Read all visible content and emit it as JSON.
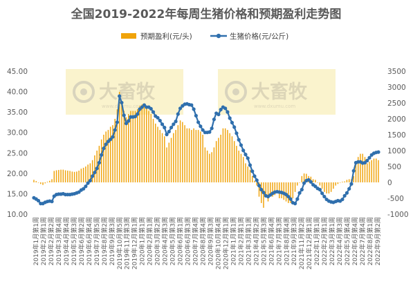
{
  "chart_data": {
    "type": "bar+line",
    "title": "全国2019-2022年每周生猪价格和预期盈利走势图",
    "xlabel": "",
    "ylabel_left": "",
    "ylabel_right": "",
    "y_left": {
      "min": 10,
      "max": 45,
      "step": 5,
      "tick_labels": [
        "10.00",
        "15.00",
        "20.00",
        "25.00",
        "30.00",
        "35.00",
        "40.00",
        "45.00"
      ]
    },
    "y_right": {
      "min": -1000,
      "max": 3500,
      "step": 500,
      "tick_labels": [
        "-1000",
        "-500",
        "0",
        "500",
        "1000",
        "1500",
        "2000",
        "2500",
        "3000",
        "3500"
      ]
    },
    "legend": {
      "position": "top",
      "items": [
        {
          "name": "预期盈利(元/头)",
          "color": "#f0a30a",
          "type": "bar"
        },
        {
          "name": "生猪价格(元/公斤)",
          "color": "#2f6fad",
          "type": "line"
        }
      ]
    },
    "watermark": {
      "logo_text": "大畜牧",
      "url": "www.dxumu.com",
      "count": 2
    },
    "x_tick_labels": [
      "2019年1月第1周",
      "2019年2月第1周",
      "2019年2月第2周",
      "2019年3月第4周",
      "2019年4月第4周",
      "2019年5月第3周",
      "2019年6月第2周",
      "2019年6月第4周",
      "2019年7月第5周",
      "2019年8月第2周",
      "2019年9月第3周",
      "2019年10月第5周",
      "2019年11月第3周",
      "2019年12月第1周",
      "2020年1月第1周",
      "2020年2月第1周",
      "2020年3月第2周",
      "2020年4月第3周",
      "2020年5月第3周",
      "2020年6月第1周",
      "2020年6月第3周",
      "2020年7月第4周",
      "2020年8月第4周",
      "2020年9月第3周",
      "2020年10月第4周",
      "2020年12月第1周",
      "2021年1月第1周",
      "2021年2月第1周",
      "2021年3月第1周",
      "2021年4月第2周",
      "2021年5月第3周",
      "2021年6月第4周",
      "2021年7月第3周",
      "2021年8月第4周",
      "2021年9月第3周",
      "2021年11月第2周",
      "2021年12月第1周",
      "2022年1月第1周",
      "2022年2月第1周",
      "2022年3月第1周",
      "2022年4月第3周",
      "2022年5月第4周",
      "2022年6月第4周",
      "2022年7月第4周",
      "2022年8月第1周",
      "2022年9月第2周"
    ],
    "series": [
      {
        "name": "生猪价格(元/公斤)",
        "axis": "left",
        "type": "line",
        "values": [
          14.0,
          13.7,
          13.3,
          12.6,
          12.6,
          12.9,
          13.1,
          13.2,
          13.1,
          14.4,
          14.8,
          14.9,
          14.9,
          15.0,
          14.8,
          14.8,
          14.8,
          14.9,
          15.0,
          15.2,
          15.4,
          15.9,
          16.2,
          16.8,
          17.6,
          18.2,
          19.3,
          20.2,
          21.2,
          22.6,
          24.5,
          26.1,
          27.1,
          27.8,
          28.3,
          28.9,
          30.6,
          32.5,
          38.9,
          37.3,
          34.2,
          32.2,
          32.8,
          33.8,
          33.8,
          33.9,
          34.5,
          35.7,
          36.2,
          36.7,
          36.2,
          36.2,
          35.8,
          35.0,
          34.0,
          33.6,
          32.9,
          32.0,
          31.2,
          29.5,
          30.2,
          31.2,
          32.0,
          32.7,
          34.5,
          35.9,
          36.5,
          36.9,
          37.0,
          36.8,
          36.7,
          35.7,
          34.1,
          32.5,
          31.5,
          30.6,
          30.0,
          30.0,
          30.1,
          31.0,
          33.2,
          34.7,
          34.4,
          35.6,
          36.2,
          35.9,
          35.0,
          33.5,
          32.4,
          31.3,
          29.8,
          28.2,
          26.9,
          25.6,
          24.6,
          23.7,
          22.0,
          20.5,
          19.3,
          18.3,
          17.0,
          16.0,
          15.3,
          14.5,
          14.3,
          14.7,
          15.1,
          15.4,
          15.5,
          15.4,
          15.3,
          15.1,
          14.8,
          14.3,
          13.7,
          12.8,
          12.6,
          13.7,
          15.2,
          16.0,
          17.6,
          18.2,
          18.4,
          17.9,
          17.2,
          16.8,
          16.3,
          16.0,
          15.1,
          14.3,
          13.6,
          13.2,
          13.0,
          12.9,
          13.1,
          13.3,
          13.2,
          13.6,
          14.5,
          15.2,
          16.2,
          17.4,
          20.6,
          22.6,
          22.8,
          22.8,
          22.5,
          22.6,
          23.1,
          23.8,
          24.5,
          24.9,
          25.1,
          25.2
        ]
      },
      {
        "name": "预期盈利(元/头)",
        "axis": "right",
        "type": "bar",
        "values": [
          80,
          40,
          -10,
          -50,
          -80,
          -30,
          20,
          50,
          100,
          360,
          380,
          390,
          400,
          400,
          380,
          370,
          360,
          340,
          330,
          340,
          370,
          430,
          460,
          500,
          560,
          600,
          700,
          850,
          1000,
          1150,
          1350,
          1500,
          1600,
          1650,
          1750,
          1800,
          2000,
          2300,
          2850,
          2500,
          2250,
          2050,
          2150,
          2250,
          2250,
          2250,
          2300,
          2400,
          2450,
          2450,
          2350,
          2250,
          2150,
          2000,
          1850,
          1750,
          1650,
          1550,
          1450,
          1100,
          1250,
          1400,
          1550,
          1650,
          1800,
          1950,
          1900,
          1800,
          1700,
          1700,
          1650,
          1700,
          1650,
          1650,
          1600,
          1500,
          1100,
          1000,
          900,
          950,
          1100,
          1300,
          1400,
          1500,
          1700,
          1700,
          1650,
          1550,
          1450,
          1300,
          1150,
          1000,
          900,
          800,
          600,
          500,
          400,
          200,
          50,
          -100,
          -450,
          -650,
          -800,
          -450,
          -600,
          -400,
          -450,
          -400,
          -350,
          -500,
          -500,
          -550,
          -600,
          -650,
          -650,
          -500,
          -300,
          -100,
          0,
          200,
          280,
          270,
          200,
          180,
          100,
          80,
          0,
          -100,
          -200,
          -300,
          -350,
          -350,
          -300,
          -200,
          -100,
          -50,
          0,
          20,
          30,
          80,
          100,
          100,
          200,
          600,
          800,
          900,
          900,
          800,
          600,
          650,
          700,
          750,
          750,
          700
        ]
      }
    ]
  }
}
